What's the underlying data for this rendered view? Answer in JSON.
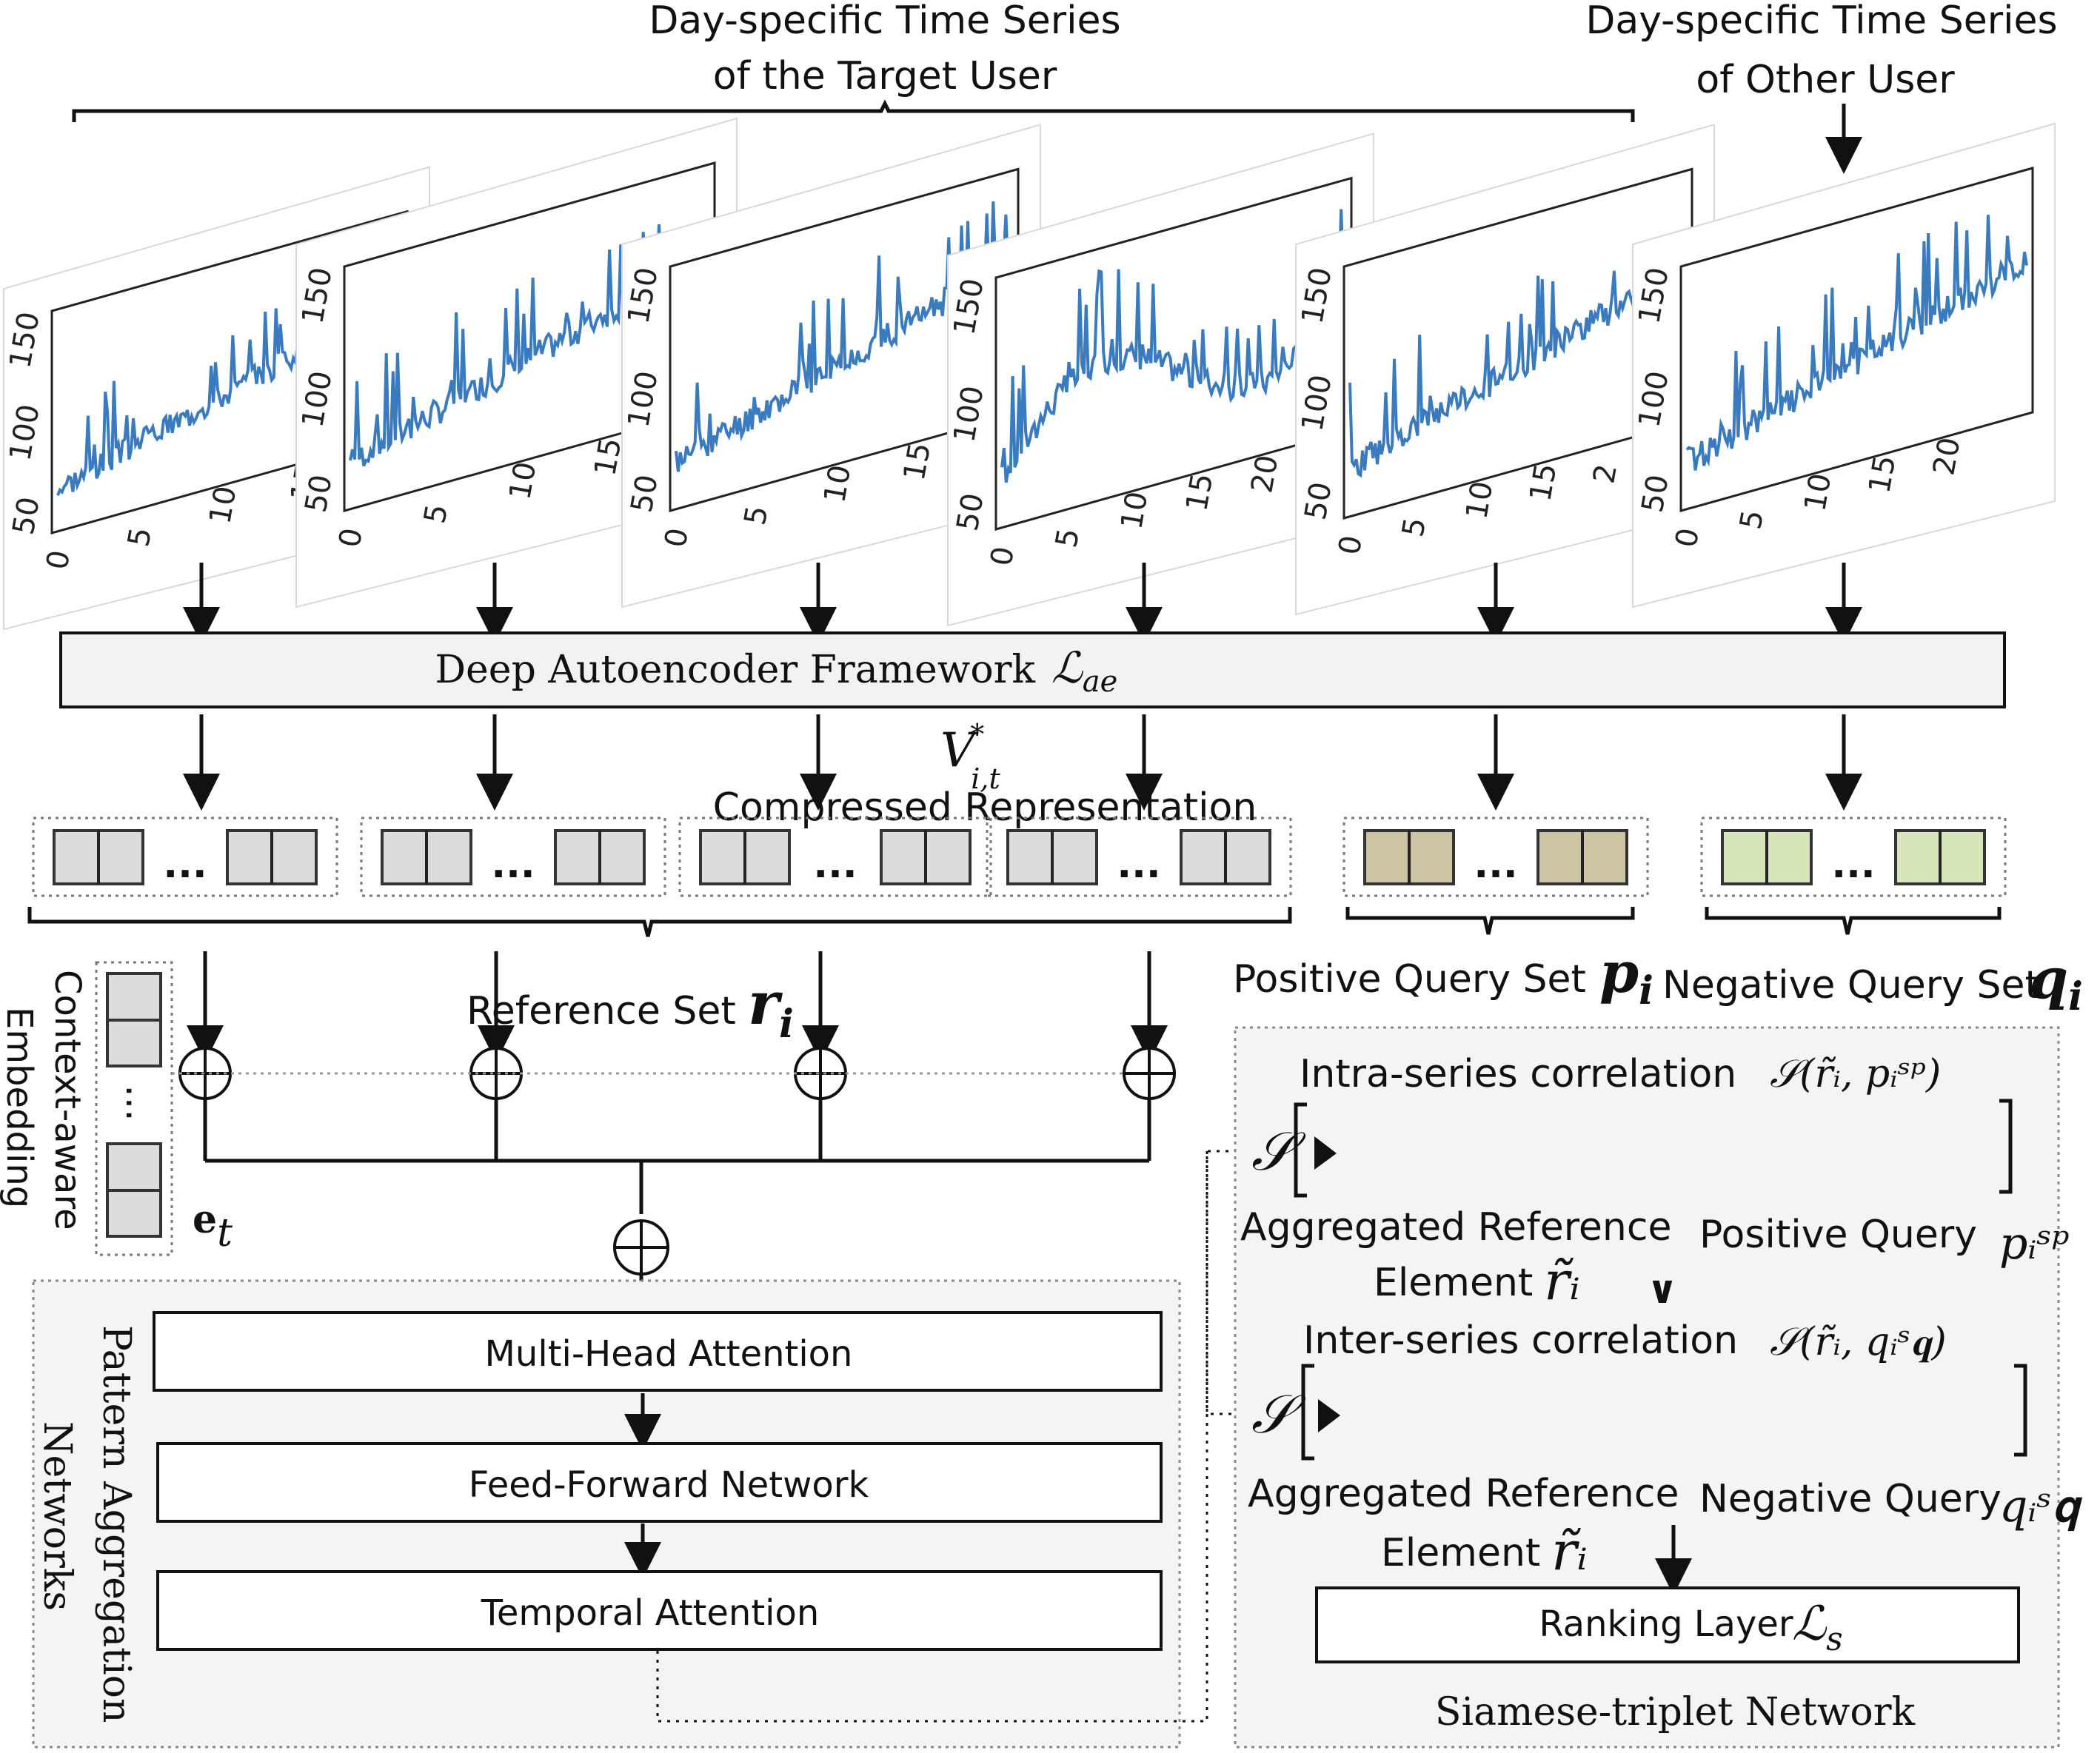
{
  "header": {
    "target_user_line1": "Day-specific Time Series",
    "target_user_line2": "of the Target User",
    "other_user_line1": "Day-specific Time Series",
    "other_user_line2": "of Other User"
  },
  "plots": {
    "y_ticks": [
      "150",
      "100",
      "50"
    ],
    "x_ticks_short": [
      "0",
      "5",
      "10",
      "15"
    ],
    "x_ticks_long": [
      "0",
      "5",
      "10",
      "15",
      "20"
    ],
    "x_tick_cut": "2",
    "ellipsis": "..."
  },
  "autoencoder": {
    "label": "Deep Autoencoder Framework",
    "loss": "ℒ",
    "loss_sub": "ae"
  },
  "compressed": {
    "symbol": "V",
    "sub": "i,t",
    "sup": "*",
    "label": "Compressed Representation"
  },
  "sets": {
    "reference_label": "Reference Set",
    "reference_sym": "r",
    "reference_sub": "i",
    "positive_label": "Positive Query Set",
    "positive_sym": "p",
    "positive_sub": "i",
    "negative_label": "Negative Query Set",
    "negative_sym": "q",
    "negative_sub": "i"
  },
  "context": {
    "line1": "Context-aware",
    "line2": "Embedding",
    "sym": "e",
    "sub": "t"
  },
  "pattern_networks": {
    "title_line1": "Pattern Aggregation",
    "title_line2": "Networks",
    "multi_head": "Multi-Head Attention",
    "feed_forward": "Feed-Forward Network",
    "temporal": "Temporal Attention"
  },
  "siamese": {
    "intra_label": "Intra-series correlation",
    "intra_formula": "𝒮(r̃ᵢ, pᵢˢᵖ)",
    "inter_label": "Inter-series correlation",
    "inter_formula": "𝒮(r̃ᵢ, qᵢˢ𝐪)",
    "s_symbol": "𝒮",
    "agg_ref_line1": "Aggregated Reference",
    "agg_ref_line2": "Element",
    "agg_ref_sym": "r̃ᵢ",
    "positive_query": "Positive Query",
    "positive_query_sym": "pᵢˢᵖ",
    "negative_query": "Negative Query",
    "negative_query_sym": "qᵢˢ𝐪",
    "compare": "∨",
    "ranking_label": "Ranking Layer",
    "ranking_loss": "ℒ",
    "ranking_loss_sub": "s",
    "network_label": "Siamese-triplet Network"
  },
  "colors": {
    "series_line": "#3a7bbf",
    "reference_cell": "#dcdcdc",
    "positive_cell": "#cdc4a3",
    "negative_cell": "#d6e6b8"
  }
}
